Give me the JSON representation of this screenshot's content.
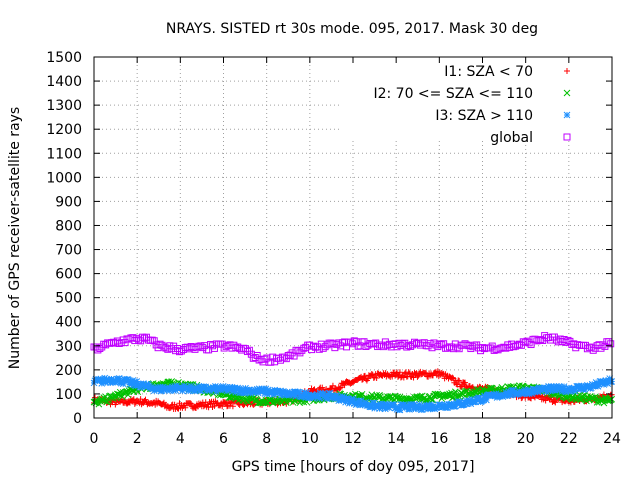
{
  "chart_data": {
    "type": "scatter",
    "title": "NRAYS. SISTED rt 30s mode. 095, 2017. Mask 30 deg",
    "xlabel": "GPS time [hours of doy 095, 2017]",
    "ylabel": "Number of GPS receiver-satellite rays",
    "xlim": [
      0,
      24
    ],
    "ylim": [
      0,
      1500
    ],
    "xticks": [
      0,
      2,
      4,
      6,
      8,
      10,
      12,
      14,
      16,
      18,
      20,
      22,
      24
    ],
    "yticks": [
      0,
      100,
      200,
      300,
      400,
      500,
      600,
      700,
      800,
      900,
      1000,
      1100,
      1200,
      1300,
      1400,
      1500
    ],
    "grid": true,
    "legend_position": "top-right",
    "series": [
      {
        "name": "I1: SZA < 70",
        "marker": "+",
        "color": "#ff0000",
        "x": [
          0,
          1,
          2,
          3,
          3.5,
          4,
          5,
          6,
          7,
          8,
          9,
          10,
          11,
          12,
          13,
          14,
          15,
          16,
          17,
          18,
          19,
          20,
          21,
          22,
          23,
          24
        ],
        "values": [
          75,
          65,
          70,
          60,
          45,
          50,
          55,
          60,
          60,
          65,
          70,
          110,
          120,
          150,
          175,
          180,
          180,
          185,
          140,
          120,
          110,
          90,
          80,
          70,
          80,
          95
        ]
      },
      {
        "name": "I2: 70 <= SZA <= 110",
        "marker": "x",
        "color": "#00c000",
        "x": [
          0,
          1,
          2,
          3,
          4,
          5,
          6,
          7,
          8,
          9,
          10,
          11,
          12,
          13,
          14,
          15,
          16,
          17,
          18,
          19,
          20,
          21,
          22,
          23,
          24
        ],
        "values": [
          60,
          90,
          120,
          140,
          140,
          120,
          100,
          80,
          70,
          70,
          80,
          90,
          90,
          85,
          80,
          80,
          90,
          100,
          110,
          120,
          125,
          110,
          90,
          80,
          70
        ]
      },
      {
        "name": "I3: SZA > 110",
        "marker": "*",
        "color": "#1e90ff",
        "x": [
          0,
          1,
          2,
          3,
          4,
          5,
          6,
          7,
          8,
          9,
          10,
          11,
          12,
          13,
          14,
          15,
          16,
          17,
          18,
          19,
          20,
          21,
          22,
          23,
          24
        ],
        "values": [
          150,
          160,
          140,
          120,
          125,
          120,
          120,
          115,
          110,
          100,
          95,
          90,
          70,
          50,
          45,
          45,
          50,
          60,
          80,
          100,
          110,
          120,
          120,
          130,
          155
        ]
      },
      {
        "name": "global",
        "marker": "square",
        "color": "#c000ff",
        "x": [
          0,
          1,
          2,
          2.5,
          3,
          4,
          5,
          6,
          7,
          7.5,
          8,
          9,
          10,
          11,
          12,
          13,
          14,
          15,
          16,
          17,
          18,
          19,
          20,
          21,
          22,
          23,
          24
        ],
        "values": [
          285,
          315,
          330,
          325,
          300,
          285,
          290,
          300,
          285,
          250,
          240,
          255,
          295,
          300,
          310,
          305,
          305,
          305,
          300,
          300,
          290,
          295,
          310,
          335,
          310,
          290,
          310
        ]
      }
    ]
  }
}
